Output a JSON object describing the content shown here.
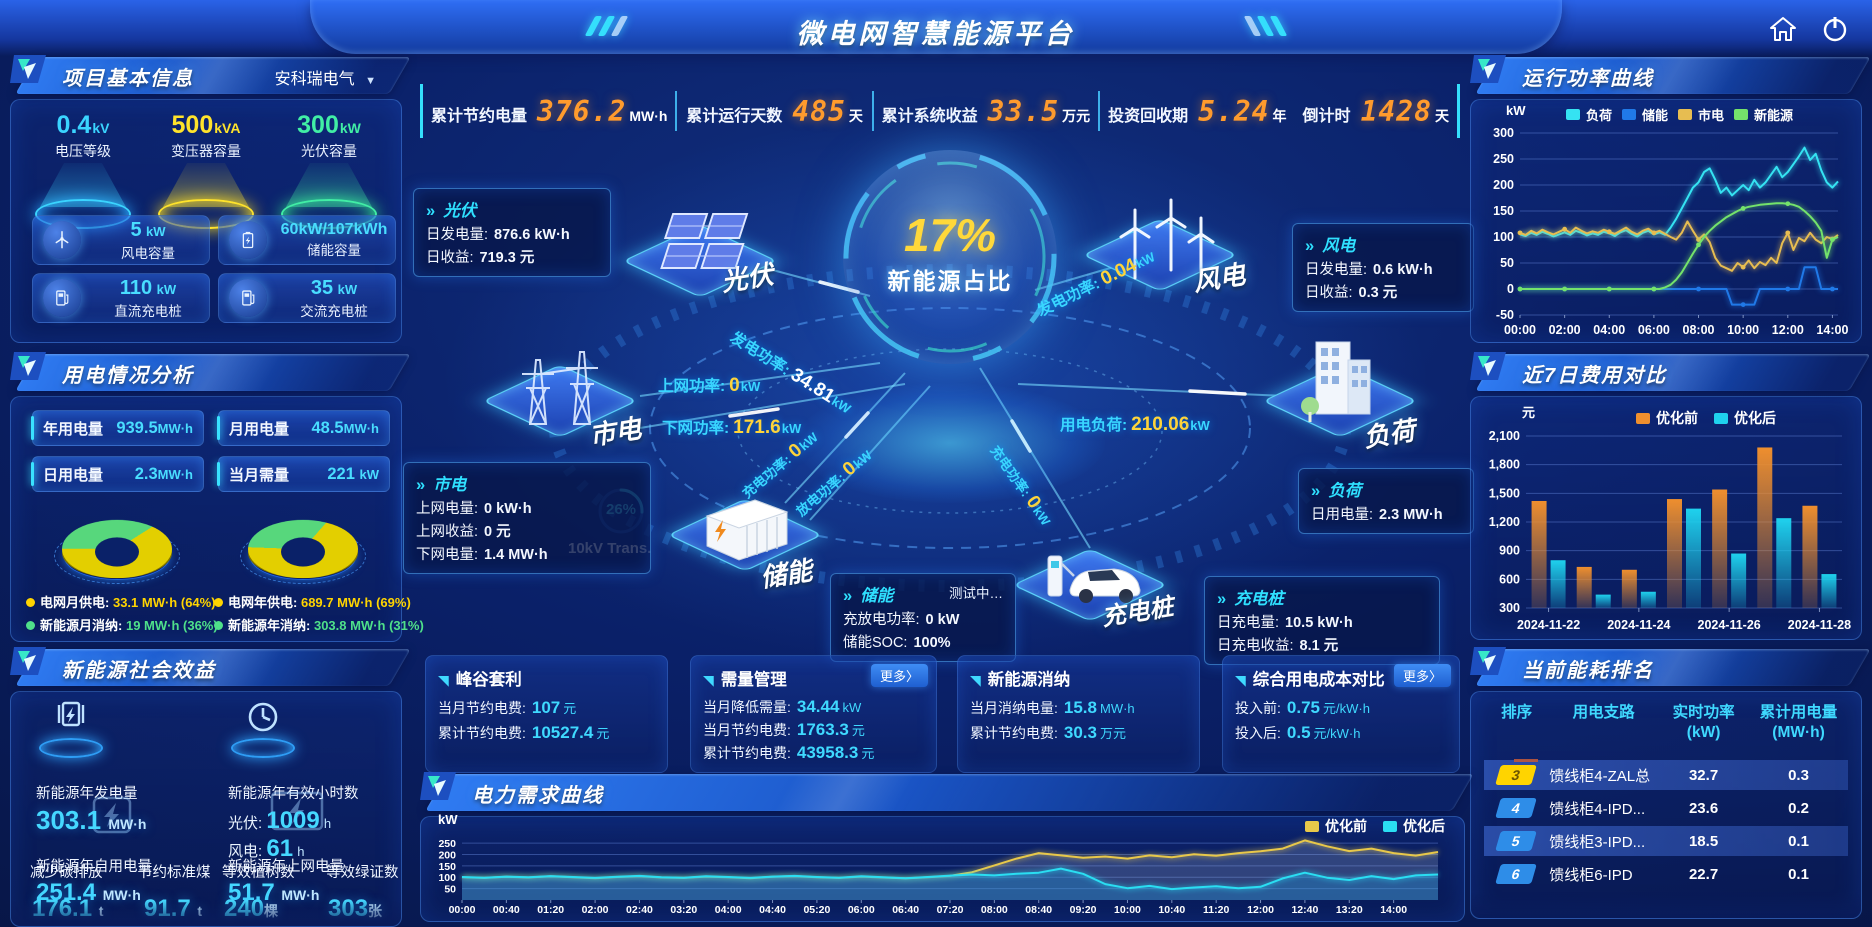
{
  "header": {
    "title": "微电网智慧能源平台"
  },
  "kpi_bar": {
    "items": [
      {
        "label": "累计节约电量",
        "value": "376.2",
        "unit": "MW·h"
      },
      {
        "label": "累计运行天数",
        "value": "485",
        "unit": "天"
      },
      {
        "label": "累计系统收益",
        "value": "33.5",
        "unit": "万元"
      },
      {
        "label": "投资回收期",
        "value": "5.24",
        "unit": "年"
      },
      {
        "label": "倒计时",
        "value": "1428",
        "unit": "天"
      }
    ]
  },
  "project_info": {
    "title": "项目基本信息",
    "company": "安科瑞电气",
    "spotlights": [
      {
        "value": "0.4",
        "unit": "kV",
        "label": "电压等级"
      },
      {
        "value": "500",
        "unit": "kVA",
        "label": "变压器容量"
      },
      {
        "value": "300",
        "unit": "kW",
        "label": "光伏容量"
      }
    ],
    "cards": [
      {
        "value": "5",
        "unit": "kW",
        "label": "风电容量"
      },
      {
        "value": "60kW/107kWh",
        "unit": "",
        "label": "储能容量"
      },
      {
        "value": "110",
        "unit": "kW",
        "label": "直流充电桩"
      },
      {
        "value": "35",
        "unit": "kW",
        "label": "交流充电桩"
      }
    ]
  },
  "power_usage": {
    "title": "用电情况分析",
    "stats": [
      {
        "label": "年用电量",
        "value": "939.5",
        "unit": "MW·h"
      },
      {
        "label": "月用电量",
        "value": "48.5",
        "unit": "MW·h"
      },
      {
        "label": "日用电量",
        "value": "2.3",
        "unit": "MW·h"
      },
      {
        "label": "当月需量",
        "value": "221",
        "unit": "kW"
      }
    ]
  },
  "social_benefit": {
    "title": "新能源社会效益",
    "gen": {
      "label": "新能源年发电量",
      "value": "303.1",
      "unit": "MW·h"
    },
    "hours": {
      "label": "新能源年有效小时数",
      "pv_k": "光伏:",
      "pv_v": "1009",
      "pv_u": "h",
      "wind_k": "风电:",
      "wind_v": "61",
      "wind_u": "h"
    },
    "self_use": {
      "label": "新能源年自用电量",
      "value": "251.4",
      "unit": "MW·h"
    },
    "to_grid": {
      "label": "新能源年上网电量",
      "value": "51.7",
      "unit": "MW·h"
    },
    "co2": {
      "label": "减少碳排放",
      "value": "176.1",
      "unit": "t"
    },
    "coal": {
      "label": "节约标准煤",
      "value": "91.7",
      "unit": "t"
    },
    "trees": {
      "label": "等效植树数",
      "value": "240",
      "unit": "棵"
    },
    "certs": {
      "label": "等效绿证数",
      "value": "303",
      "unit": "张"
    }
  },
  "diagram": {
    "center_percent": "17%",
    "center_label": "新能源占比",
    "nodes": {
      "pv": "光伏",
      "wind": "风电",
      "grid": "市电",
      "load": "负荷",
      "storage": "储能",
      "charger": "充电桩"
    },
    "transformer": {
      "percent": "26%",
      "label": "10kV Trans."
    },
    "info_boxes": {
      "pv": {
        "title": "光伏",
        "rows": [
          {
            "k": "日发电量:",
            "v": "876.6 kW·h"
          },
          {
            "k": "日收益:",
            "v": "719.3 元"
          }
        ]
      },
      "wind": {
        "title": "风电",
        "rows": [
          {
            "k": "日发电量:",
            "v": "0.6 kW·h"
          },
          {
            "k": "日收益:",
            "v": "0.3 元"
          }
        ]
      },
      "grid": {
        "title": "市电",
        "rows": [
          {
            "k": "上网电量:",
            "v": "0 kW·h"
          },
          {
            "k": "上网收益:",
            "v": "0 元"
          },
          {
            "k": "下网电量:",
            "v": "1.4 MW·h"
          }
        ]
      },
      "storage": {
        "title": "储能",
        "status": "测试中…",
        "rows": [
          {
            "k": "充放电功率:",
            "v": "0 kW"
          },
          {
            "k": "储能SOC:",
            "v": "100%"
          }
        ]
      },
      "charger": {
        "title": "充电桩",
        "rows": [
          {
            "k": "日充电量:",
            "v": "10.5 kW·h"
          },
          {
            "k": "日充电收益:",
            "v": "8.1 元"
          }
        ]
      },
      "load": {
        "title": "负荷",
        "rows": [
          {
            "k": "日用电量:",
            "v": "2.3 MW·h"
          }
        ]
      }
    },
    "flows": {
      "pv": {
        "label": "发电功率:",
        "value": "34.81",
        "unit": "kW"
      },
      "wind": {
        "label": "发电功率:",
        "value": "0.04",
        "unit": "kW"
      },
      "grid_up": {
        "label": "上网功率:",
        "value": "0",
        "unit": "kW"
      },
      "grid_down": {
        "label": "下网功率:",
        "value": "171.6",
        "unit": "kW"
      },
      "load": {
        "label": "用电负荷:",
        "value": "210.06",
        "unit": "kW"
      },
      "storage_charge": {
        "label": "充电功率:",
        "value": "0",
        "unit": "kW"
      },
      "storage_discharge": {
        "label": "放电功率:",
        "value": "0",
        "unit": "kW"
      },
      "charger": {
        "label": "充电功率:",
        "value": "0",
        "unit": "kW"
      }
    }
  },
  "benefit_panels": [
    {
      "title": "峰谷套利",
      "rows": [
        {
          "k": "当月节约电费:",
          "v": "107",
          "u": "元"
        },
        {
          "k": "累计节约电费:",
          "v": "10527.4",
          "u": "元"
        }
      ]
    },
    {
      "title": "需量管理",
      "more": "更多〉",
      "rows": [
        {
          "k": "当月降低需量:",
          "v": "34.44",
          "u": "kW"
        },
        {
          "k": "当月节约电费:",
          "v": "1763.3",
          "u": "元"
        },
        {
          "k": "累计节约电费:",
          "v": "43958.3",
          "u": "元"
        }
      ]
    },
    {
      "title": "新能源消纳",
      "rows": [
        {
          "k": "当月消纳电量:",
          "v": "15.8",
          "u": "MW·h"
        },
        {
          "k": "累计节约电费:",
          "v": "30.3",
          "u": "万元"
        }
      ]
    },
    {
      "title": "综合用电成本对比",
      "more": "更多〉",
      "rows": [
        {
          "k": "投入前:",
          "v": "0.75",
          "u": "元/kW·h"
        },
        {
          "k": "投入后:",
          "v": "0.5",
          "u": "元/kW·h"
        }
      ]
    }
  ],
  "energy_rank": {
    "title": "当前能耗排名",
    "columns": [
      {
        "l": "排序",
        "u": ""
      },
      {
        "l": "用电支路",
        "u": ""
      },
      {
        "l": "实时功率",
        "u": "(kW)"
      },
      {
        "l": "累计用电量",
        "u": "(MW·h)"
      }
    ],
    "rows": [
      {
        "rank": "3",
        "branch": "馈线柜4-ZAL总",
        "power": "32.7",
        "energy": "0.3"
      },
      {
        "rank": "4",
        "branch": "馈线柜4-IPD...",
        "power": "23.6",
        "energy": "0.2"
      },
      {
        "rank": "5",
        "branch": "馈线柜3-IPD...",
        "power": "18.5",
        "energy": "0.1"
      },
      {
        "rank": "6",
        "branch": "馈线柜6-IPD",
        "power": "22.7",
        "energy": "0.1"
      }
    ]
  },
  "chart_data": [
    {
      "id": "power-curve",
      "type": "line",
      "title": "运行功率曲线",
      "ylabel": "kW",
      "ylim": [
        -50,
        300
      ],
      "yticks": [
        -50,
        0,
        50,
        100,
        150,
        200,
        250,
        300
      ],
      "xticks": [
        "00:00",
        "02:00",
        "04:00",
        "06:00",
        "08:00",
        "10:00",
        "12:00",
        "14:00"
      ],
      "legend_pos": "top",
      "grid": true,
      "series": [
        {
          "name": "负荷",
          "color": "#35e3f2",
          "values": [
            105,
            102,
            108,
            104,
            110,
            106,
            101,
            105,
            109,
            104,
            112,
            108,
            103,
            107,
            104,
            110,
            107,
            102,
            109,
            113,
            106,
            101,
            108,
            112,
            105,
            109,
            104,
            118,
            135,
            155,
            175,
            195,
            205,
            225,
            232,
            210,
            185,
            195,
            180,
            190,
            200,
            190,
            210,
            195,
            205,
            220,
            235,
            215,
            225,
            240,
            255,
            272,
            248,
            260,
            228,
            205,
            195,
            207
          ]
        },
        {
          "name": "储能",
          "color": "#2079e8",
          "dots": true,
          "values": [
            0,
            0,
            0,
            0,
            0,
            0,
            0,
            0,
            0,
            0,
            0,
            0,
            0,
            0,
            0,
            0,
            0,
            0,
            0,
            0,
            0,
            0,
            0,
            0,
            0,
            0,
            0,
            0,
            0,
            0,
            0,
            0,
            0,
            0,
            0,
            0,
            0,
            0,
            -30,
            -30,
            -30,
            -30,
            -30,
            0,
            0,
            0,
            0,
            0,
            0,
            0,
            0,
            42,
            42,
            42,
            0,
            0,
            0,
            0
          ]
        },
        {
          "name": "市电",
          "color": "#e7bd51",
          "dots": true,
          "values": [
            108,
            104,
            112,
            107,
            114,
            109,
            105,
            110,
            115,
            108,
            118,
            112,
            107,
            111,
            108,
            114,
            110,
            106,
            112,
            118,
            110,
            105,
            112,
            116,
            108,
            112,
            106,
            100,
            95,
            108,
            130,
            112,
            95,
            105,
            90,
            60,
            45,
            40,
            35,
            50,
            42,
            55,
            40,
            52,
            46,
            60,
            50,
            88,
            108,
            75,
            98,
            92,
            108,
            95,
            88,
            100,
            96,
            104
          ]
        },
        {
          "name": "新能源",
          "color": "#74e36b",
          "dots": true,
          "values": [
            0,
            0,
            0,
            0,
            0,
            0,
            0,
            0,
            0,
            0,
            0,
            0,
            0,
            0,
            0,
            0,
            0,
            0,
            0,
            0,
            0,
            0,
            0,
            0,
            0,
            0,
            3,
            8,
            18,
            32,
            50,
            68,
            85,
            100,
            112,
            122,
            130,
            138,
            144,
            150,
            155,
            158,
            160,
            162,
            163,
            164,
            165,
            165,
            164,
            162,
            158,
            150,
            140,
            128,
            112,
            60,
            95,
            100
          ]
        }
      ]
    },
    {
      "id": "cost-compare",
      "type": "bar",
      "title": "近7日费用对比",
      "ylabel": "元",
      "ylim": [
        300,
        2100
      ],
      "yticks": [
        300,
        600,
        900,
        1200,
        1500,
        1800,
        2100
      ],
      "categories": [
        "2024-11-22",
        "2024-11-23",
        "2024-11-24",
        "2024-11-25",
        "2024-11-26",
        "2024-11-27",
        "2024-11-28"
      ],
      "xtick_show": [
        "2024-11-22",
        "2024-11-24",
        "2024-11-26",
        "2024-11-28"
      ],
      "legend_pos": "top",
      "grid": true,
      "series": [
        {
          "name": "优化前",
          "color": "#ef8f2e",
          "values": [
            1420,
            730,
            700,
            1440,
            1540,
            1980,
            1370
          ]
        },
        {
          "name": "优化后",
          "color": "#1fd2ee",
          "values": [
            800,
            440,
            470,
            1340,
            870,
            1240,
            655
          ]
        }
      ]
    },
    {
      "id": "demand-curve",
      "type": "line",
      "title": "电力需求曲线",
      "ylabel": "kW",
      "ylim": [
        0,
        290
      ],
      "yticks": [
        50,
        100,
        150,
        200,
        250
      ],
      "xticks": [
        "00:00",
        "00:40",
        "01:20",
        "02:00",
        "02:40",
        "03:20",
        "04:00",
        "04:40",
        "05:20",
        "06:00",
        "06:40",
        "07:20",
        "08:00",
        "08:40",
        "09:20",
        "10:00",
        "10:40",
        "11:20",
        "12:00",
        "12:40",
        "13:20",
        "14:00"
      ],
      "legend_pos": "top-right",
      "grid": true,
      "series": [
        {
          "name": "优化前",
          "color": "#e8c84a",
          "fill": "rgba(165,180,210,0.25)",
          "values": [
            100,
            97,
            102,
            99,
            104,
            100,
            96,
            101,
            105,
            99,
            97,
            103,
            100,
            96,
            102,
            105,
            100,
            97,
            103,
            99,
            95,
            100,
            106,
            122,
            152,
            182,
            206,
            196,
            186,
            191,
            182,
            196,
            188,
            201,
            194,
            206,
            214,
            226,
            262,
            236,
            215,
            226,
            206,
            195,
            211
          ]
        },
        {
          "name": "优化后",
          "color": "#2adef2",
          "fill": "rgba(30,145,215,0.35)",
          "values": [
            101,
            98,
            103,
            100,
            105,
            101,
            97,
            102,
            106,
            100,
            98,
            104,
            101,
            97,
            103,
            106,
            101,
            98,
            104,
            100,
            96,
            101,
            107,
            112,
            108,
            115,
            120,
            138,
            115,
            70,
            52,
            62,
            48,
            55,
            60,
            52,
            58,
            95,
            120,
            98,
            88,
            105,
            92,
            108,
            112
          ]
        }
      ]
    },
    {
      "id": "donut-month",
      "type": "pie",
      "rotate": 40,
      "slices": [
        {
          "label": "电网月供电:",
          "value": 64,
          "color": "#e3cf00",
          "text": "33.1 MW·h (64%)"
        },
        {
          "label": "新能源月消纳:",
          "value": 36,
          "color": "#57d77c",
          "text": "19 MW·h (36%)"
        }
      ]
    },
    {
      "id": "donut-year",
      "type": "pie",
      "rotate": 25,
      "slices": [
        {
          "label": "电网年供电:",
          "value": 69,
          "color": "#e3cf00",
          "text": "689.7 MW·h (69%)"
        },
        {
          "label": "新能源年消纳:",
          "value": 31,
          "color": "#57d77c",
          "text": "303.8 MW·h (31%)"
        }
      ]
    }
  ]
}
